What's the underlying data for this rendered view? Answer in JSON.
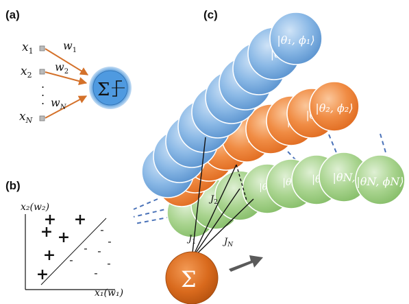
{
  "panels": {
    "a": {
      "label": "(a)",
      "inputs": [
        {
          "x": "x",
          "sub": "1"
        },
        {
          "x": "x",
          "sub": "2"
        },
        {
          "x": "x",
          "sub": "N"
        }
      ],
      "weights": [
        {
          "w": "w",
          "sub": "1"
        },
        {
          "w": "w",
          "sub": "2"
        },
        {
          "w": "w",
          "sub": "N"
        }
      ],
      "dots": ".",
      "neuron_symbol": "Σ"
    },
    "b": {
      "label": "(b)",
      "ylabel": "x₂(w₂)",
      "xlabel": "x₁(w₁)",
      "plus": "+",
      "minus": "-"
    },
    "c": {
      "label": "(c)",
      "chains": [
        {
          "name": "blue",
          "color": "#6aa3d8",
          "front_label": "|θ₁, ϕ₁⟩",
          "partial_label": "|θ₁,",
          "faded": [
            "|θ₁",
            "|θ"
          ]
        },
        {
          "name": "orange",
          "color": "#ee7d3a",
          "front_label": "|θ₂, ϕ₂⟩",
          "partial_label": "|θ₂,",
          "faded": [
            "|θ₂,",
            "|θ₂",
            "|θ"
          ]
        },
        {
          "name": "green",
          "color": "#93c47d",
          "front_label": "|θN, ϕN⟩",
          "partial_label": "|θN,",
          "faded": [
            "|θN",
            "|θN",
            "|θ"
          ]
        }
      ],
      "couplings": [
        {
          "j": "J",
          "sub": "1"
        },
        {
          "j": "J",
          "sub": "2"
        },
        {
          "j": "J",
          "sub": "N"
        }
      ],
      "sum_symbol": "Σ",
      "colors": {
        "sum_node": "#d46a1f",
        "dash": "#4a72b8",
        "arrow": "#595959"
      }
    }
  }
}
